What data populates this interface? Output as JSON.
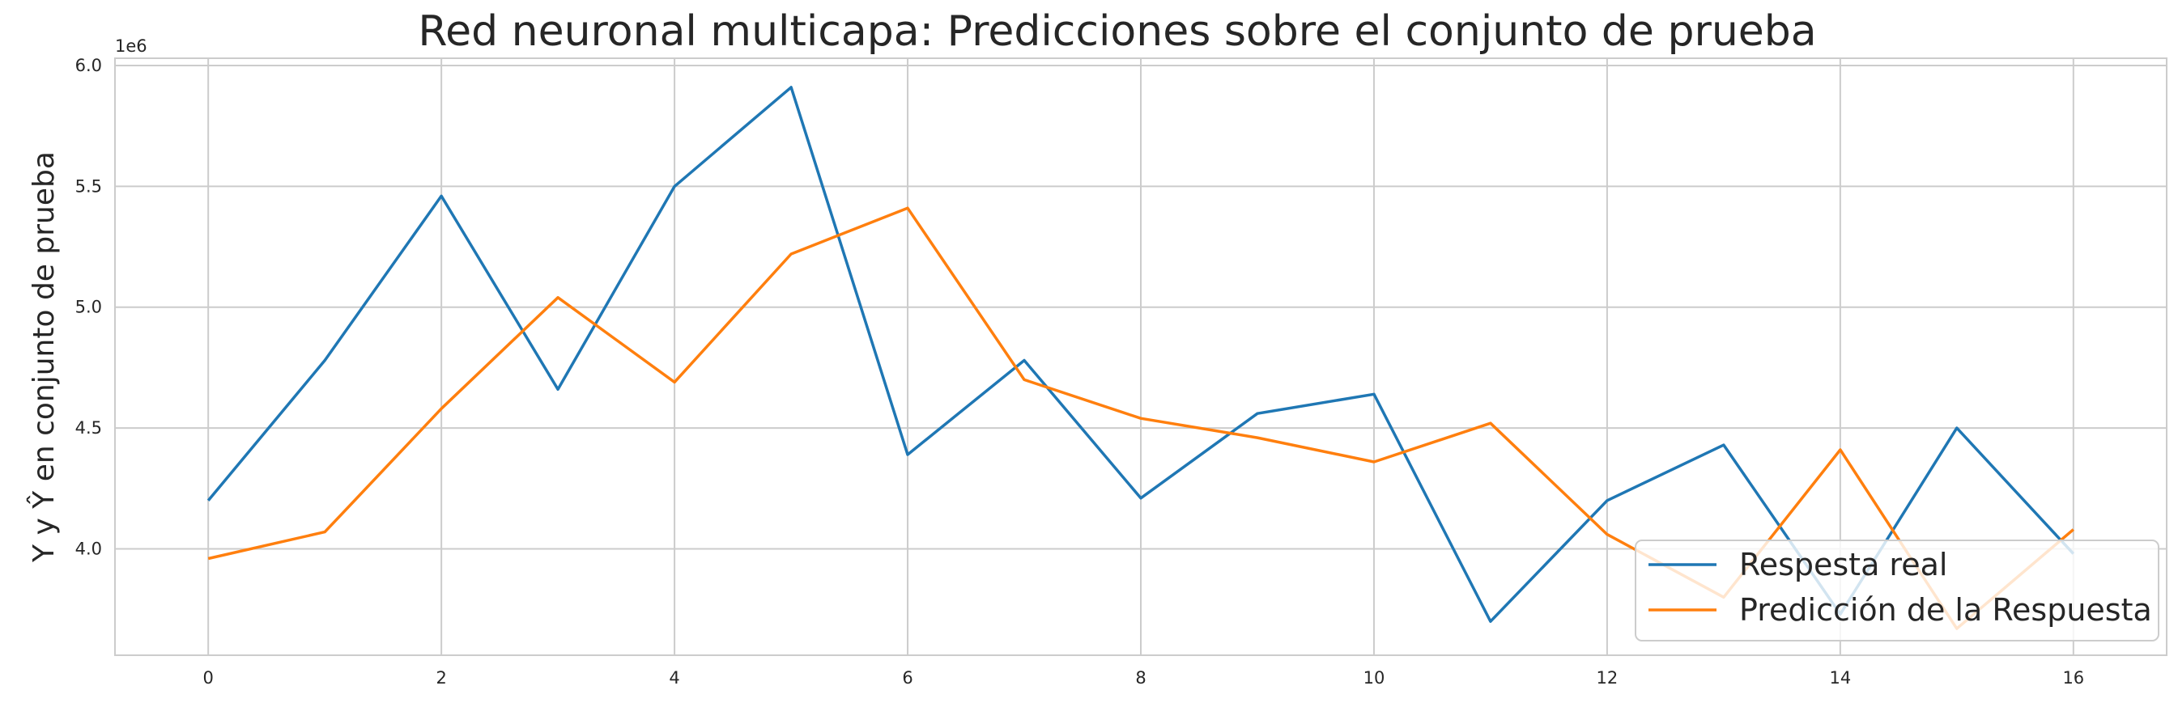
{
  "chart_data": {
    "type": "line",
    "title": "Red neuronal multicapa: Predicciones sobre el conjunto de prueba",
    "xlabel": "",
    "ylabel": "Y y Ŷ en conjunto de prueba",
    "y_offset_label": "1e6",
    "x": [
      0,
      1,
      2,
      3,
      4,
      5,
      6,
      7,
      8,
      9,
      10,
      11,
      12,
      13,
      14,
      15,
      16
    ],
    "xlim": [
      -0.8,
      16.8
    ],
    "ylim": [
      3.56,
      6.03
    ],
    "x_ticks": [
      0,
      2,
      4,
      6,
      8,
      10,
      12,
      14,
      16
    ],
    "y_ticks": [
      4.0,
      4.5,
      5.0,
      5.5,
      6.0
    ],
    "grid": true,
    "legend_position": "lower right",
    "series": [
      {
        "name": "Respesta real",
        "color": "#1f77b4",
        "values": [
          4.2,
          4.78,
          5.46,
          4.66,
          5.5,
          5.91,
          4.39,
          4.78,
          4.21,
          4.56,
          4.64,
          3.7,
          4.2,
          4.43,
          3.73,
          4.5,
          3.98
        ]
      },
      {
        "name": "Predicción de la Respuesta",
        "color": "#ff7f0e",
        "values": [
          3.96,
          4.07,
          4.58,
          5.04,
          4.69,
          5.22,
          5.41,
          4.7,
          4.54,
          4.46,
          4.36,
          4.52,
          4.06,
          3.8,
          4.41,
          3.67,
          4.08
        ]
      }
    ]
  }
}
